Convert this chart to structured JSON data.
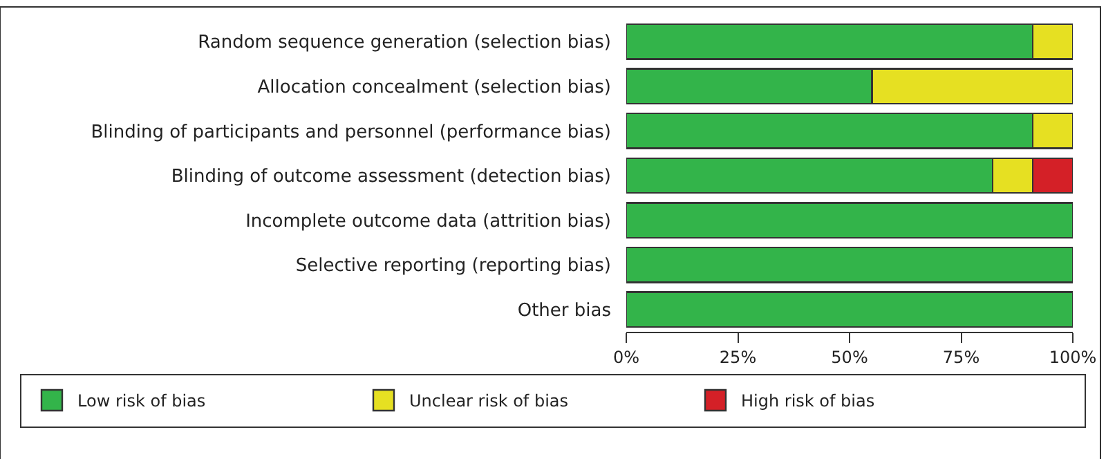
{
  "chart_data": {
    "type": "bar",
    "orientation": "horizontal",
    "stacked": true,
    "categories": [
      "Random sequence generation (selection bias)",
      "Allocation concealment (selection bias)",
      "Blinding of participants and personnel (performance bias)",
      "Blinding of outcome assessment (detection bias)",
      "Incomplete outcome data (attrition bias)",
      "Selective reporting (reporting bias)",
      "Other bias"
    ],
    "series": [
      {
        "name": "Low risk of bias",
        "color": "#33b44a",
        "values": [
          91,
          55,
          91,
          82,
          100,
          100,
          100
        ]
      },
      {
        "name": "Unclear risk of bias",
        "color": "#e6e022",
        "values": [
          9,
          45,
          9,
          9,
          0,
          0,
          0
        ]
      },
      {
        "name": "High risk of bias",
        "color": "#d42027",
        "values": [
          0,
          0,
          0,
          9,
          0,
          0,
          0
        ]
      }
    ],
    "xlim": [
      0,
      100
    ],
    "xticks": [
      {
        "value": 0,
        "label": "0%"
      },
      {
        "value": 25,
        "label": "25%"
      },
      {
        "value": 50,
        "label": "50%"
      },
      {
        "value": 75,
        "label": "75%"
      },
      {
        "value": 100,
        "label": "100%"
      }
    ],
    "legend": "bottom"
  }
}
